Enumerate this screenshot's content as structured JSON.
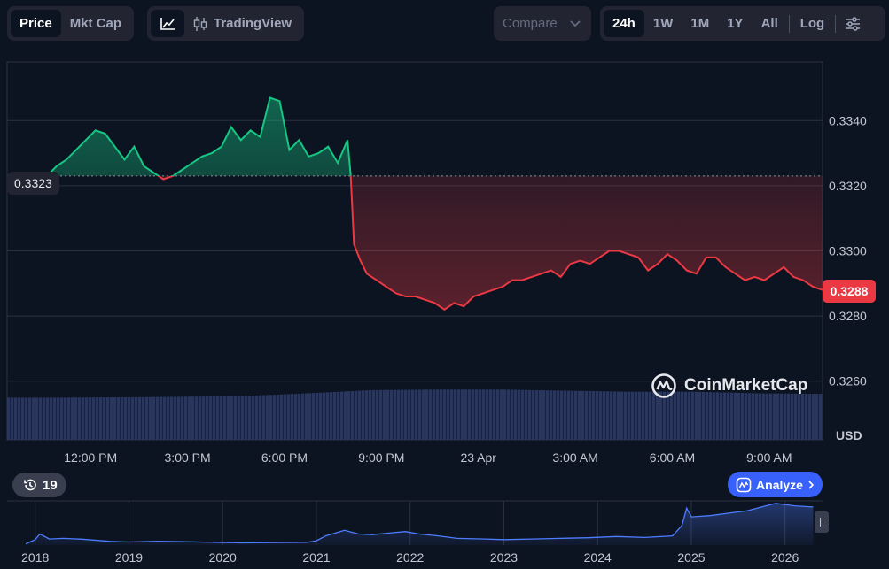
{
  "toolbar": {
    "view_tabs": [
      {
        "label": "Price",
        "active": true
      },
      {
        "label": "Mkt Cap",
        "active": false
      }
    ],
    "chart_style": {
      "line_icon": "line-chart-icon",
      "tradingview_icon": "candlestick-icon",
      "tradingview_label": "TradingView"
    },
    "compare": {
      "label": "Compare",
      "icon": "chevron-down-icon"
    },
    "ranges": [
      {
        "label": "24h",
        "active": true
      },
      {
        "label": "1W",
        "active": false
      },
      {
        "label": "1M",
        "active": false
      },
      {
        "label": "1Y",
        "active": false
      },
      {
        "label": "All",
        "active": false
      }
    ],
    "log_label": "Log",
    "settings_icon": "sliders-icon"
  },
  "badges": {
    "open_price": "0.3323",
    "last_price": "0.3288"
  },
  "watermark": {
    "text": "CoinMarketCap",
    "icon": "coinmarketcap-logo-icon"
  },
  "history": {
    "count": "19",
    "icon": "history-icon"
  },
  "analyze": {
    "label": "Analyze",
    "icon": "ai-analyze-icon",
    "chevron": "chevron-right-icon"
  },
  "colors": {
    "background": "#0d1421",
    "up": "#16c784",
    "down": "#ea3943",
    "volume": "#2e3a63",
    "accent": "#3861fb",
    "navigator_line": "#4d7cff"
  },
  "chart_data": {
    "type": "area",
    "title": "",
    "xlabel": "",
    "ylabel": "",
    "currency_label": "USD",
    "ylim": [
      0.3242,
      0.3358
    ],
    "y_ticks": [
      "0.3340",
      "0.3320",
      "0.3300",
      "0.3280",
      "0.3260"
    ],
    "y_tick_values": [
      0.334,
      0.332,
      0.33,
      0.328,
      0.326
    ],
    "x_ticks": [
      "12:00 PM",
      "3:00 PM",
      "6:00 PM",
      "9:00 PM",
      "23 Apr",
      "3:00 AM",
      "6:00 AM",
      "9:00 AM"
    ],
    "x_tick_hours": [
      1.35,
      4.35,
      7.35,
      10.35,
      13.35,
      16.35,
      19.35,
      22.35
    ],
    "reference_price": 0.3323,
    "last_price": 0.3288,
    "grid": true,
    "series": [
      {
        "hours": [
          0.0,
          0.3,
          0.6,
          0.9,
          1.2,
          1.5,
          1.8,
          2.1,
          2.4,
          2.7,
          3.0,
          3.3,
          3.6,
          3.9,
          4.2,
          4.5,
          4.8,
          5.1,
          5.4,
          5.7,
          6.0,
          6.3,
          6.6,
          6.9,
          7.2,
          7.5,
          7.8,
          8.1,
          8.4,
          8.7,
          9.0,
          9.3,
          9.4,
          9.5,
          9.7,
          9.9,
          10.2,
          10.5,
          10.8,
          11.1,
          11.4,
          11.7,
          12.0,
          12.3,
          12.6,
          12.9,
          13.2,
          13.5,
          13.8,
          14.1,
          14.4,
          14.7,
          15.0,
          15.3,
          15.6,
          15.9,
          16.2,
          16.5,
          16.8,
          17.1,
          17.4,
          17.7,
          18.0,
          18.3,
          18.6,
          18.9,
          19.2,
          19.5,
          19.8,
          20.1,
          20.4,
          20.7,
          21.0,
          21.3,
          21.6,
          21.9,
          22.2,
          22.5,
          22.8,
          23.1,
          23.4,
          23.7,
          24.0
        ],
        "values": [
          0.3323,
          0.3326,
          0.3328,
          0.3331,
          0.3334,
          0.3337,
          0.3336,
          0.3332,
          0.3328,
          0.3332,
          0.3326,
          0.3324,
          0.3322,
          0.3323,
          0.3325,
          0.3327,
          0.3329,
          0.333,
          0.3332,
          0.3338,
          0.3334,
          0.3337,
          0.3335,
          0.3347,
          0.3346,
          0.3331,
          0.3334,
          0.3329,
          0.333,
          0.3332,
          0.3327,
          0.3334,
          0.3323,
          0.3302,
          0.3297,
          0.3293,
          0.3291,
          0.3289,
          0.3287,
          0.3286,
          0.3286,
          0.3285,
          0.3284,
          0.3282,
          0.3284,
          0.3283,
          0.3286,
          0.3287,
          0.3288,
          0.3289,
          0.3291,
          0.3291,
          0.3292,
          0.3293,
          0.3294,
          0.3292,
          0.3296,
          0.3297,
          0.3296,
          0.3298,
          0.33,
          0.33,
          0.3299,
          0.3298,
          0.3294,
          0.3296,
          0.3299,
          0.3297,
          0.3294,
          0.3293,
          0.3298,
          0.3298,
          0.3295,
          0.3293,
          0.3291,
          0.3292,
          0.3291,
          0.3293,
          0.3295,
          0.3292,
          0.3291,
          0.3289,
          0.3288
        ]
      }
    ],
    "volume": {
      "hours": [
        0,
        3,
        6,
        8,
        10,
        12,
        14,
        16,
        18,
        20,
        22,
        24
      ],
      "relative": [
        0.78,
        0.79,
        0.81,
        0.86,
        0.92,
        0.93,
        0.93,
        0.91,
        0.89,
        0.89,
        0.86,
        0.85
      ]
    },
    "navigator": {
      "x_ticks": [
        "2018",
        "2019",
        "2020",
        "2021",
        "2022",
        "2023",
        "2024",
        "2025",
        "2026"
      ],
      "years": [
        2018,
        2019,
        2020,
        2021,
        2022,
        2023,
        2024,
        2025,
        2026
      ],
      "points": [
        [
          2017.9,
          0.1
        ],
        [
          2018.0,
          0.45
        ],
        [
          2018.05,
          0.9
        ],
        [
          2018.15,
          0.5
        ],
        [
          2018.3,
          0.55
        ],
        [
          2018.5,
          0.48
        ],
        [
          2018.8,
          0.3
        ],
        [
          2019.0,
          0.25
        ],
        [
          2019.3,
          0.32
        ],
        [
          2019.6,
          0.28
        ],
        [
          2019.9,
          0.22
        ],
        [
          2020.2,
          0.18
        ],
        [
          2020.5,
          0.2
        ],
        [
          2020.9,
          0.22
        ],
        [
          2021.0,
          0.35
        ],
        [
          2021.1,
          0.75
        ],
        [
          2021.3,
          1.2
        ],
        [
          2021.45,
          0.9
        ],
        [
          2021.6,
          0.85
        ],
        [
          2021.8,
          1.0
        ],
        [
          2021.95,
          1.1
        ],
        [
          2022.1,
          0.9
        ],
        [
          2022.3,
          0.75
        ],
        [
          2022.5,
          0.55
        ],
        [
          2022.8,
          0.5
        ],
        [
          2023.0,
          0.45
        ],
        [
          2023.3,
          0.5
        ],
        [
          2023.6,
          0.55
        ],
        [
          2023.9,
          0.6
        ],
        [
          2024.2,
          0.7
        ],
        [
          2024.5,
          0.62
        ],
        [
          2024.8,
          0.75
        ],
        [
          2024.9,
          1.6
        ],
        [
          2024.95,
          3.0
        ],
        [
          2025.0,
          2.3
        ],
        [
          2025.2,
          2.4
        ],
        [
          2025.4,
          2.6
        ],
        [
          2025.6,
          2.8
        ],
        [
          2025.75,
          3.1
        ],
        [
          2025.9,
          3.4
        ],
        [
          2026.1,
          3.2
        ],
        [
          2026.3,
          3.1
        ]
      ],
      "ylim": [
        0,
        3.6
      ],
      "xlim": [
        2017.7,
        2026.4
      ]
    }
  }
}
